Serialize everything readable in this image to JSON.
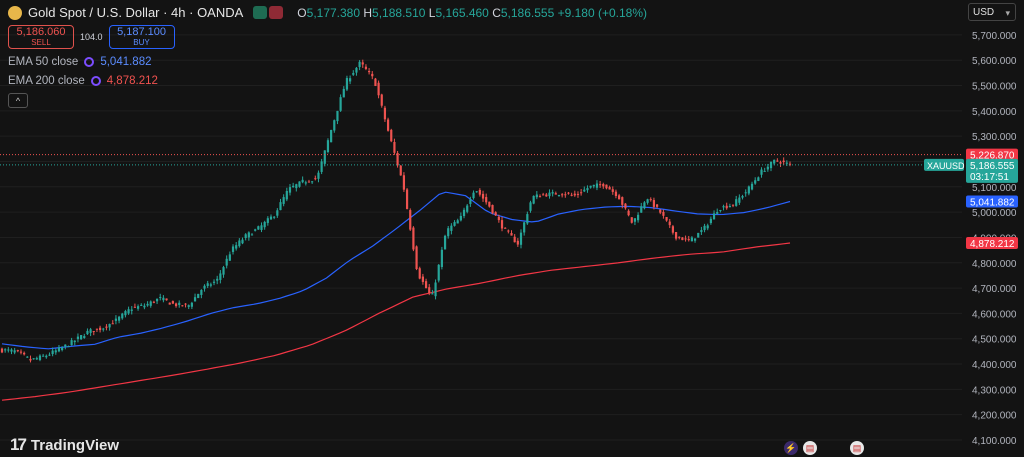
{
  "header": {
    "title": "Gold Spot / U.S. Dollar · 4h · OANDA",
    "ohlc": [
      {
        "k": "O",
        "v": "5,177.380"
      },
      {
        "k": "H",
        "v": "5,188.510"
      },
      {
        "k": "L",
        "v": "5,165.460"
      },
      {
        "k": "C",
        "v": "5,186.555"
      }
    ],
    "change": "+9.180 (+0.18%)"
  },
  "trade": {
    "sell_price": "5,186.060",
    "sell_label": "SELL",
    "spread": "104.0",
    "buy_price": "5,187.100",
    "buy_label": "BUY"
  },
  "indicators": [
    {
      "label": "EMA 50 close",
      "value": "5,041.882",
      "color": "#2962ff"
    },
    {
      "label": "EMA 200 close",
      "value": "4,878.212",
      "color": "#f23645"
    }
  ],
  "collapse_glyph": "^",
  "currency": "USD",
  "currency_caret": "▾",
  "logo": {
    "mark": "17",
    "text": "TradingView"
  },
  "colors": {
    "up": "#26a69a",
    "down": "#ef5350",
    "ema50": "#2962ff",
    "ema200": "#f23645",
    "background": "#131313",
    "grid": "#1f1f1f"
  },
  "chart_data": {
    "type": "candlestick",
    "symbol": "XAUUSD",
    "timeframe": "4h",
    "ylim": [
      4100,
      5750
    ],
    "y_ticks": [
      4100,
      4200,
      4300,
      4400,
      4500,
      4600,
      4700,
      4800,
      4900,
      5000,
      5100,
      5200,
      5300,
      5400,
      5500,
      5600,
      5700
    ],
    "y_tick_labels": [
      "4,100.000",
      "4,200.000",
      "4,300.000",
      "4,400.000",
      "4,500.000",
      "4,600.000",
      "4,700.000",
      "4,800.000",
      "4,900.000",
      "5,000.000",
      "5,100.000",
      "5,200.000",
      "5,300.000",
      "5,400.000",
      "5,500.000",
      "5,600.000",
      "5,700.000"
    ],
    "close_anchors": [
      4455,
      4450,
      4415,
      4432,
      4458,
      4490,
      4528,
      4542,
      4574,
      4620,
      4632,
      4660,
      4635,
      4630,
      4700,
      4730,
      4850,
      4905,
      4940,
      4990,
      5090,
      5120,
      5135,
      5330,
      5515,
      5590,
      5520,
      5310,
      5110,
      4760,
      4660,
      4925,
      4975,
      5095,
      5025,
      4935,
      4875,
      5060,
      5070,
      5075,
      5065,
      5100,
      5110,
      5065,
      4955,
      5060,
      4995,
      4905,
      4885,
      4935,
      5015,
      5030,
      5085,
      5160,
      5205,
      5187
    ],
    "ema50_anchors": [
      4480,
      4468,
      4460,
      4470,
      4478,
      4506,
      4522,
      4544,
      4570,
      4600,
      4623,
      4638,
      4660,
      4690,
      4740,
      4810,
      4866,
      4934,
      5005,
      5081,
      5065,
      4998,
      4971,
      4960,
      4992,
      5010,
      5020,
      5023,
      5018,
      5005,
      4993,
      4990,
      4998,
      5017,
      5042
    ],
    "ema200_anchors": [
      4257,
      4272,
      4290,
      4312,
      4334,
      4356,
      4380,
      4405,
      4435,
      4475,
      4530,
      4600,
      4665,
      4697,
      4720,
      4748,
      4770,
      4785,
      4800,
      4818,
      4833,
      4842,
      4862,
      4878
    ],
    "price_labels": [
      {
        "symbol": "XAUUSD",
        "value": "5,186.555",
        "countdown": "03:17:51",
        "color": "#26a69a"
      },
      {
        "value": "5,226.870",
        "color": "#f23645"
      },
      {
        "value": "5,041.882",
        "color": "#2962ff"
      },
      {
        "value": "4,878.212",
        "color": "#f23645"
      }
    ],
    "current_price": 5186.555,
    "high_line": 5226.87,
    "ema50_last": 5041.882,
    "ema200_last": 4878.212
  }
}
